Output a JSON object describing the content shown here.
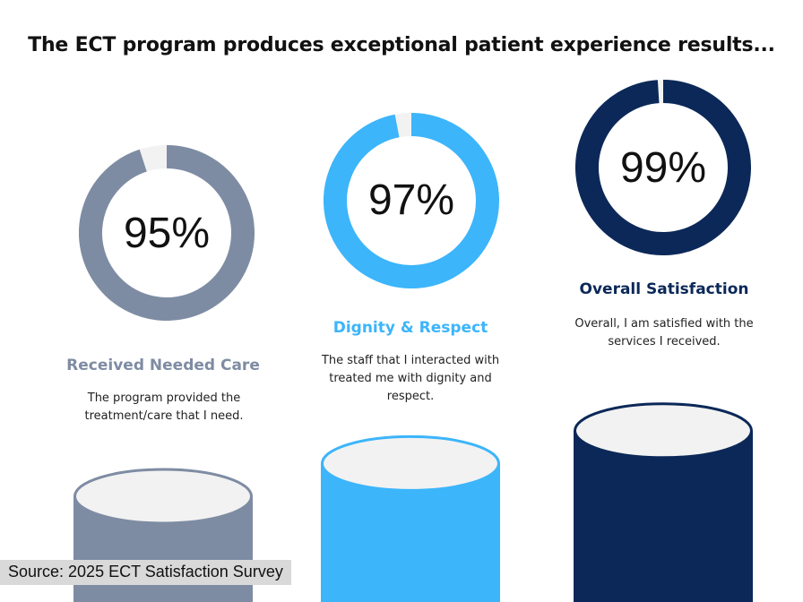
{
  "title": "The ECT program produces exceptional patient experience results...",
  "source": "Source: 2025 ECT Satisfaction Survey",
  "chart_data": {
    "type": "donut-and-cylinder",
    "title": "The ECT program produces exceptional patient experience results...",
    "categories": [
      "Received Needed Care",
      "Dignity & Respect",
      "Overall Satisfaction"
    ],
    "values": [
      95,
      97,
      99
    ],
    "unit": "%",
    "ylim": [
      0,
      100
    ],
    "value_labels": [
      "95%",
      "97%",
      "99%"
    ],
    "descriptions": [
      "The program provided the treatment/care that I need.",
      "The staff that I interacted with treated me with dignity and respect.",
      "Overall, I am satisfied with the services I received."
    ],
    "colors": [
      "#7e8ca3",
      "#3cb5fb",
      "#0b2858"
    ],
    "label_colors": [
      "#7e8ca3",
      "#3cb5fb",
      "#0b2858"
    ],
    "remainder_color": "#f2f2f2",
    "grid": false,
    "legend": "none"
  }
}
